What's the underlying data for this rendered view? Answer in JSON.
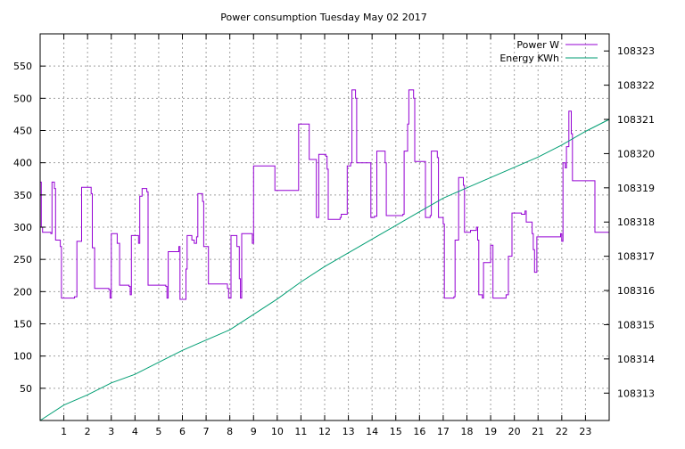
{
  "chart_data": {
    "type": "line",
    "title": "Power consumption Tuesday May 02 2017",
    "xlabel": "",
    "ylabel": "",
    "grid": true,
    "legend_position": "top-right",
    "xlim": [
      0,
      24
    ],
    "x_ticks": [
      1,
      2,
      3,
      4,
      5,
      6,
      7,
      8,
      9,
      10,
      11,
      12,
      13,
      14,
      15,
      16,
      17,
      18,
      19,
      20,
      21,
      22,
      23
    ],
    "ylim_left": [
      0,
      600
    ],
    "y_ticks_left": [
      50,
      100,
      150,
      200,
      250,
      300,
      350,
      400,
      450,
      500,
      550
    ],
    "ylim_right": [
      108312.2,
      108323.5
    ],
    "y_ticks_right": [
      108313,
      108314,
      108315,
      108316,
      108317,
      108318,
      108319,
      108320,
      108321,
      108322,
      108323
    ],
    "series": [
      {
        "name": "Power W",
        "axis": "left",
        "color": "#9400d3",
        "step": true,
        "points": [
          [
            0.0,
            370
          ],
          [
            0.05,
            300
          ],
          [
            0.1,
            292
          ],
          [
            0.45,
            290
          ],
          [
            0.5,
            370
          ],
          [
            0.6,
            360
          ],
          [
            0.65,
            280
          ],
          [
            0.85,
            270
          ],
          [
            0.9,
            190
          ],
          [
            1.45,
            192
          ],
          [
            1.55,
            278
          ],
          [
            1.75,
            362
          ],
          [
            2.15,
            352
          ],
          [
            2.2,
            268
          ],
          [
            2.3,
            262
          ],
          [
            2.3,
            205
          ],
          [
            2.9,
            203
          ],
          [
            2.95,
            190
          ],
          [
            3.0,
            290
          ],
          [
            3.25,
            275
          ],
          [
            3.35,
            210
          ],
          [
            3.75,
            208
          ],
          [
            3.8,
            195
          ],
          [
            3.85,
            287
          ],
          [
            4.15,
            275
          ],
          [
            4.2,
            348
          ],
          [
            4.3,
            360
          ],
          [
            4.5,
            355
          ],
          [
            4.55,
            210
          ],
          [
            5.3,
            208
          ],
          [
            5.35,
            190
          ],
          [
            5.4,
            262
          ],
          [
            5.85,
            270
          ],
          [
            5.9,
            188
          ],
          [
            6.15,
            235
          ],
          [
            6.2,
            287
          ],
          [
            6.4,
            280
          ],
          [
            6.5,
            275
          ],
          [
            6.6,
            285
          ],
          [
            6.65,
            352
          ],
          [
            6.85,
            340
          ],
          [
            6.9,
            270
          ],
          [
            7.1,
            212
          ],
          [
            7.9,
            205
          ],
          [
            7.95,
            190
          ],
          [
            8.05,
            287
          ],
          [
            8.3,
            270
          ],
          [
            8.4,
            220
          ],
          [
            8.45,
            190
          ],
          [
            8.5,
            290
          ],
          [
            8.95,
            275
          ],
          [
            9.0,
            395
          ],
          [
            9.85,
            395
          ],
          [
            9.9,
            357
          ],
          [
            10.85,
            357
          ],
          [
            10.9,
            460
          ],
          [
            11.3,
            460
          ],
          [
            11.35,
            405
          ],
          [
            11.6,
            405
          ],
          [
            11.65,
            315
          ],
          [
            11.75,
            413
          ],
          [
            12.05,
            410
          ],
          [
            12.1,
            390
          ],
          [
            12.15,
            312
          ],
          [
            12.65,
            315
          ],
          [
            12.7,
            320
          ],
          [
            12.9,
            320
          ],
          [
            12.95,
            395
          ],
          [
            13.1,
            400
          ],
          [
            13.15,
            513
          ],
          [
            13.3,
            500
          ],
          [
            13.35,
            400
          ],
          [
            13.9,
            400
          ],
          [
            13.95,
            315
          ],
          [
            14.1,
            317
          ],
          [
            14.2,
            418
          ],
          [
            14.5,
            418
          ],
          [
            14.55,
            400
          ],
          [
            14.6,
            318
          ],
          [
            15.3,
            320
          ],
          [
            15.35,
            418
          ],
          [
            15.5,
            460
          ],
          [
            15.55,
            513
          ],
          [
            15.75,
            500
          ],
          [
            15.8,
            402
          ],
          [
            16.2,
            402
          ],
          [
            16.25,
            315
          ],
          [
            16.45,
            318
          ],
          [
            16.5,
            418
          ],
          [
            16.75,
            408
          ],
          [
            16.8,
            315
          ],
          [
            17.0,
            305
          ],
          [
            17.05,
            190
          ],
          [
            17.45,
            192
          ],
          [
            17.5,
            280
          ],
          [
            17.65,
            377
          ],
          [
            17.85,
            365
          ],
          [
            17.9,
            292
          ],
          [
            18.15,
            295
          ],
          [
            18.4,
            300
          ],
          [
            18.45,
            280
          ],
          [
            18.5,
            195
          ],
          [
            18.65,
            190
          ],
          [
            18.7,
            245
          ],
          [
            18.95,
            245
          ],
          [
            19.0,
            272
          ],
          [
            19.1,
            190
          ],
          [
            19.65,
            195
          ],
          [
            19.75,
            255
          ],
          [
            19.9,
            322
          ],
          [
            20.3,
            320
          ],
          [
            20.45,
            325
          ],
          [
            20.5,
            308
          ],
          [
            20.75,
            290
          ],
          [
            20.8,
            265
          ],
          [
            20.85,
            230
          ],
          [
            20.95,
            285
          ],
          [
            21.95,
            290
          ],
          [
            22.0,
            278
          ],
          [
            22.05,
            400
          ],
          [
            22.15,
            392
          ],
          [
            22.2,
            425
          ],
          [
            22.3,
            480
          ],
          [
            22.4,
            445
          ],
          [
            22.45,
            372
          ],
          [
            23.35,
            372
          ],
          [
            23.4,
            292
          ],
          [
            24.0,
            292
          ]
        ]
      },
      {
        "name": "Energy KWh",
        "axis": "right",
        "color": "#009e73",
        "step": false,
        "points": [
          [
            0.0,
            108312.2
          ],
          [
            1.0,
            108312.65
          ],
          [
            2.0,
            108312.95
          ],
          [
            3.0,
            108313.3
          ],
          [
            4.0,
            108313.55
          ],
          [
            5.0,
            108313.9
          ],
          [
            6.0,
            108314.25
          ],
          [
            7.0,
            108314.55
          ],
          [
            8.0,
            108314.85
          ],
          [
            9.0,
            108315.3
          ],
          [
            10.0,
            108315.75
          ],
          [
            11.0,
            108316.25
          ],
          [
            12.0,
            108316.7
          ],
          [
            13.0,
            108317.1
          ],
          [
            14.0,
            108317.5
          ],
          [
            15.0,
            108317.9
          ],
          [
            16.0,
            108318.3
          ],
          [
            17.0,
            108318.7
          ],
          [
            18.0,
            108319.0
          ],
          [
            19.0,
            108319.3
          ],
          [
            20.0,
            108319.6
          ],
          [
            21.0,
            108319.9
          ],
          [
            22.0,
            108320.25
          ],
          [
            23.0,
            108320.65
          ],
          [
            24.0,
            108321.0
          ]
        ]
      }
    ]
  }
}
